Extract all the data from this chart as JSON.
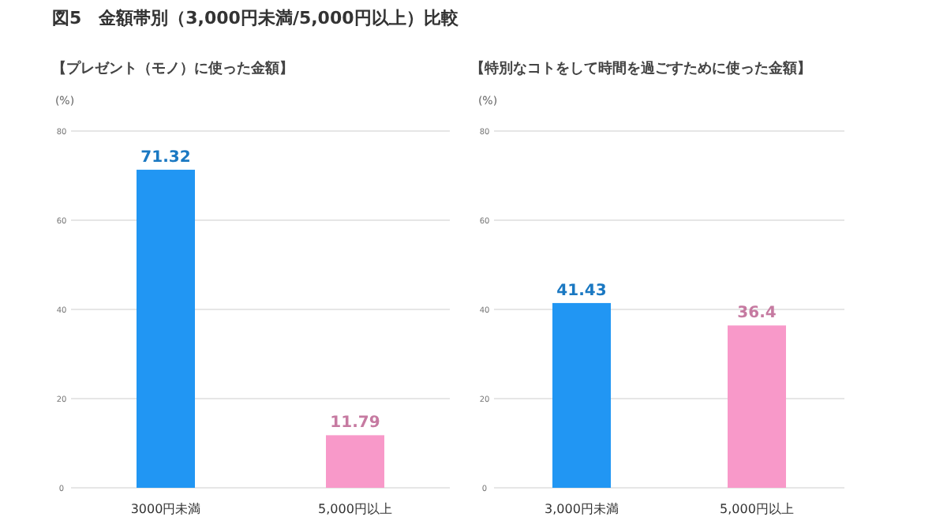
{
  "chart_data": [
    {
      "type": "bar",
      "title": "図5　金額帯別（3,000円未満/5,000円以上）比較",
      "subtitle": "【プレゼント（モノ）に使った金額】",
      "ylabel": "(%)",
      "categories": [
        "3000円未満",
        "5,000円以上"
      ],
      "values": [
        71.32,
        11.79
      ],
      "colors": [
        "#2196f3",
        "#f899c9"
      ],
      "ylim": [
        0,
        80
      ],
      "yticks": [
        0,
        20,
        40,
        60,
        80
      ],
      "grid": "y",
      "data_labels": true
    },
    {
      "type": "bar",
      "subtitle": "【特別なコトをして時間を過ごすために使った金額】",
      "ylabel": "(%)",
      "categories": [
        "3,000円未満",
        "5,000円以上"
      ],
      "values": [
        41.43,
        36.4
      ],
      "colors": [
        "#2196f3",
        "#f899c9"
      ],
      "ylim": [
        0,
        80
      ],
      "yticks": [
        0,
        20,
        40,
        60,
        80
      ],
      "grid": "y",
      "data_labels": true
    }
  ]
}
